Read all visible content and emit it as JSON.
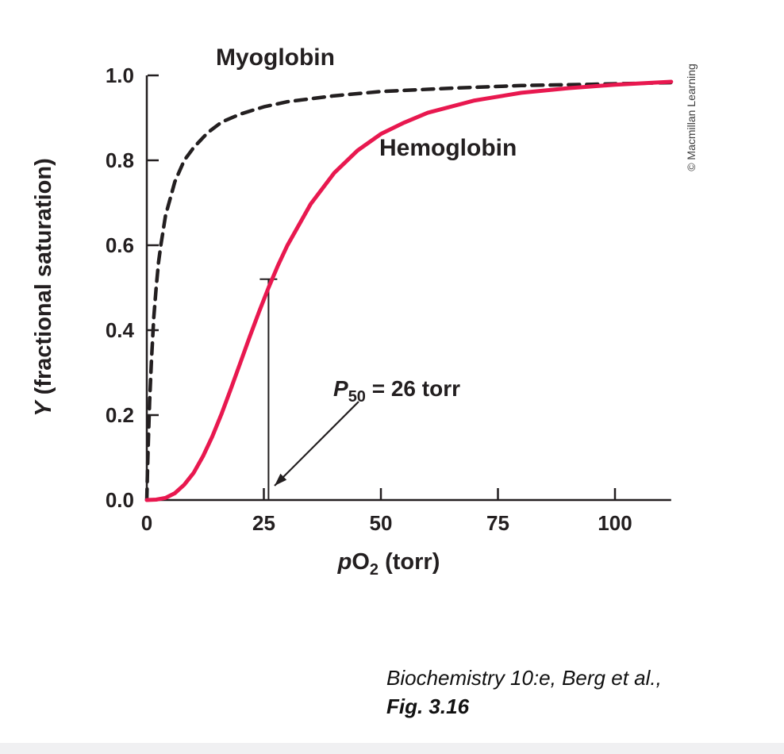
{
  "figure": {
    "copyright": "© Macmillan Learning",
    "caption_line1": "Biochemistry 10:e, Berg et al.,",
    "caption_line2": "Fig. 3.16"
  },
  "chart_data": {
    "type": "line",
    "title": "",
    "xlabel": {
      "italic": "p",
      "main": "O",
      "sub": "2",
      "rest": " (torr)"
    },
    "ylabel": {
      "italic": "Y",
      "rest": " (fractional saturation)"
    },
    "xlim": [
      0,
      112
    ],
    "ylim": [
      0,
      1.0
    ],
    "x_ticks": [
      0,
      25,
      50,
      75,
      100
    ],
    "y_ticks": [
      0.0,
      0.2,
      0.4,
      0.6,
      0.8,
      1.0
    ],
    "grid": false,
    "legend": "inline-labels",
    "series_labels": {
      "myoglobin": "Myoglobin",
      "hemoglobin": "Hemoglobin"
    },
    "colors": {
      "myoglobin": "#231f20",
      "hemoglobin": "#e8184f"
    },
    "p50_label": {
      "p": "P",
      "sub": "50",
      "rest": " = 26 torr"
    },
    "p50_marker": {
      "x": 26,
      "y": 0.52
    },
    "series": [
      {
        "name": "Myoglobin",
        "style": "dashed",
        "color": "#231f20",
        "points": [
          [
            0,
            0
          ],
          [
            0.15,
            0.07
          ],
          [
            0.3,
            0.13
          ],
          [
            0.6,
            0.23
          ],
          [
            1,
            0.33
          ],
          [
            1.5,
            0.43
          ],
          [
            2,
            0.5
          ],
          [
            2.5,
            0.56
          ],
          [
            3,
            0.6
          ],
          [
            4,
            0.67
          ],
          [
            5,
            0.71
          ],
          [
            6,
            0.75
          ],
          [
            8,
            0.8
          ],
          [
            10,
            0.83
          ],
          [
            13,
            0.865
          ],
          [
            16,
            0.89
          ],
          [
            20,
            0.909
          ],
          [
            25,
            0.926
          ],
          [
            30,
            0.938
          ],
          [
            40,
            0.952
          ],
          [
            50,
            0.962
          ],
          [
            65,
            0.97
          ],
          [
            80,
            0.976
          ],
          [
            95,
            0.979
          ],
          [
            112,
            0.983
          ]
        ]
      },
      {
        "name": "Hemoglobin",
        "style": "solid",
        "color": "#e8184f",
        "points": [
          [
            0,
            0
          ],
          [
            2,
            0.001
          ],
          [
            4,
            0.005
          ],
          [
            6,
            0.016
          ],
          [
            8,
            0.036
          ],
          [
            10,
            0.064
          ],
          [
            12,
            0.103
          ],
          [
            14,
            0.15
          ],
          [
            16,
            0.204
          ],
          [
            18,
            0.263
          ],
          [
            20,
            0.324
          ],
          [
            22,
            0.385
          ],
          [
            24,
            0.444
          ],
          [
            26,
            0.5
          ],
          [
            28,
            0.552
          ],
          [
            30,
            0.599
          ],
          [
            35,
            0.697
          ],
          [
            40,
            0.77
          ],
          [
            45,
            0.823
          ],
          [
            50,
            0.862
          ],
          [
            55,
            0.889
          ],
          [
            60,
            0.912
          ],
          [
            70,
            0.941
          ],
          [
            80,
            0.959
          ],
          [
            90,
            0.97
          ],
          [
            100,
            0.978
          ],
          [
            112,
            0.985
          ]
        ]
      }
    ]
  }
}
